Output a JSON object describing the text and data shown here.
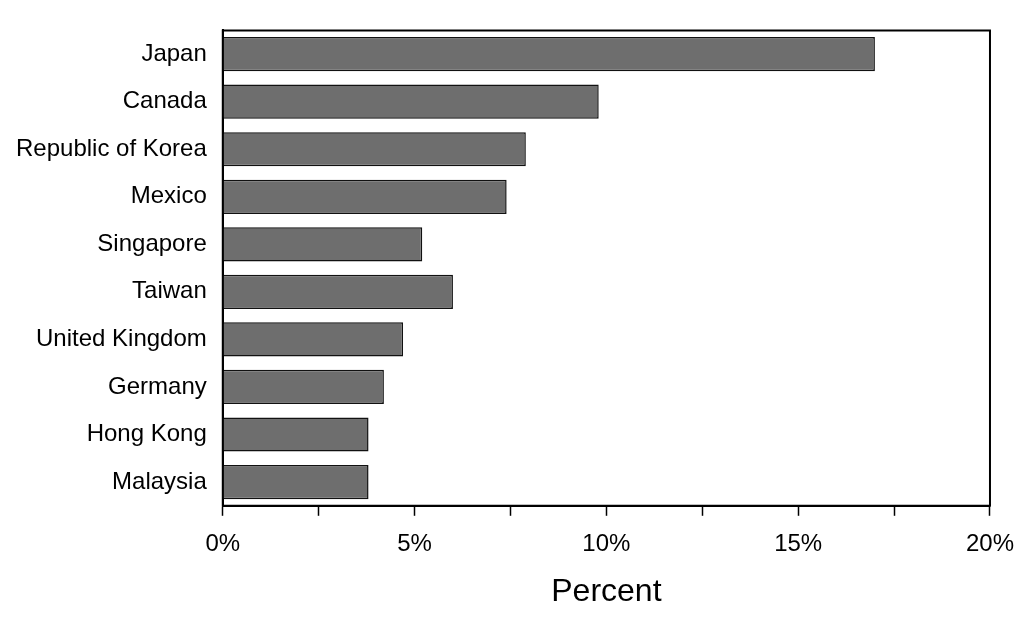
{
  "chart_data": {
    "type": "bar",
    "orientation": "horizontal",
    "xlabel": "Percent",
    "categories": [
      "Japan",
      "Canada",
      "Republic of Korea",
      "Mexico",
      "Singapore",
      "Taiwan",
      "United Kingdom",
      "Germany",
      "Hong Kong",
      "Malaysia"
    ],
    "values": [
      17,
      9.8,
      7.9,
      7.4,
      5.2,
      6,
      4.7,
      4.2,
      3.8,
      3.8
    ],
    "color": "#6e6e6e",
    "xlim": [
      0,
      20
    ],
    "xticks": [
      {
        "value": 0,
        "label": "0%"
      },
      {
        "value": 2.5,
        "label": null
      },
      {
        "value": 5,
        "label": "5%"
      },
      {
        "value": 7.5,
        "label": null
      },
      {
        "value": 10,
        "label": "10%"
      },
      {
        "value": 12.5,
        "label": null
      },
      {
        "value": 15,
        "label": "15%"
      },
      {
        "value": 17.5,
        "label": null
      },
      {
        "value": 20,
        "label": "20%"
      }
    ],
    "grid": false,
    "legend": false
  }
}
